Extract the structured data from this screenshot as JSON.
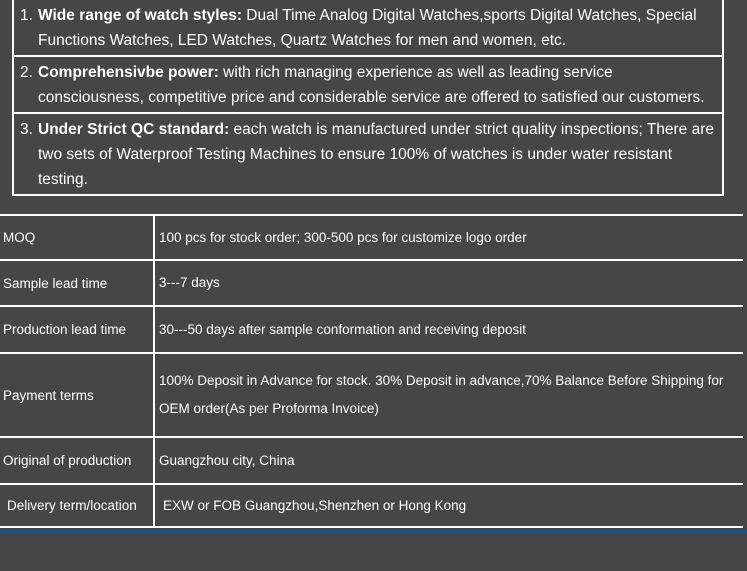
{
  "theme": {
    "background": "#464646",
    "text_color": "#ffffff",
    "border_color": "#ffffff",
    "accent_line_color": "#1e527d"
  },
  "features_list": {
    "items": [
      {
        "number": "1.",
        "title": "Wide range of watch styles:",
        "text": " Dual Time Analog Digital Watches,sports Digital Watches, Special Functions Watches, LED Watches, Quartz Watches for men and women, etc."
      },
      {
        "number": "2.",
        "title": "Comprehensivbe power:",
        "text": " with rich managing experience as well as leading service consciousness, competitive price and considerable service are offered to satisfied our customers."
      },
      {
        "number": "3.",
        "title": "Under Strict QC standard:",
        "text": " each watch is manufactured under strict quality inspections; There are two sets of Waterproof Testing Machines to ensure 100% of watches is under water resistant testing."
      }
    ]
  },
  "spec_table": {
    "rows": [
      {
        "label": "MOQ",
        "value": "100 pcs for stock order; 300-500 pcs for customize logo order"
      },
      {
        "label": "Sample lead time",
        "value": "3---7 days"
      },
      {
        "label": "Production lead time",
        "value": "30---50 days after sample conformation and receiving deposit"
      },
      {
        "label": "Payment terms",
        "value": "100% Deposit in Advance for stock. 30% Deposit in advance,70% Balance Before Shipping for OEM order(As per Proforma Invoice)"
      },
      {
        "label": "Original of production",
        "value": "Guangzhou city, China"
      },
      {
        "label": "Delivery term/location",
        "value": "EXW or FOB Guangzhou,Shenzhen or Hong Kong"
      }
    ]
  }
}
